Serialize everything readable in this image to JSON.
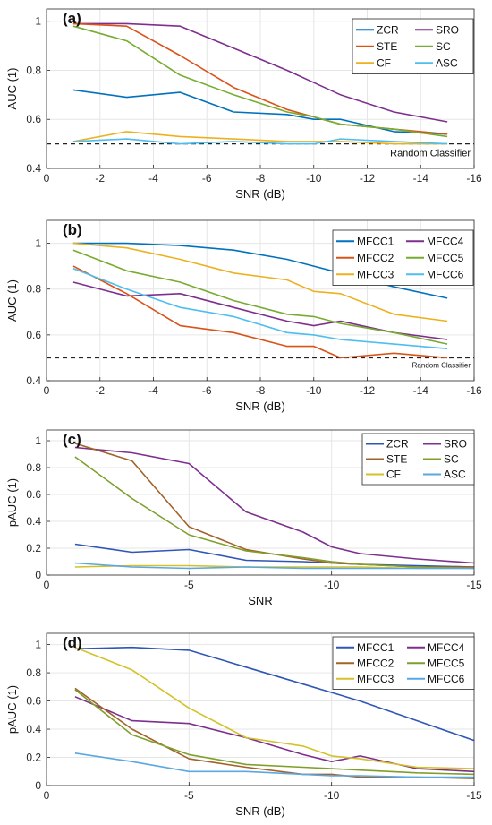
{
  "colors": {
    "blue": "#0072BD",
    "purple": "#7E2F8E",
    "red": "#D95319",
    "green": "#77AC30",
    "orange": "#EDB120",
    "cyan": "#4DBEEE",
    "brown": "#A2622A",
    "navy": "#2F56B5",
    "olive": "#7EA02A",
    "yellow": "#D4C22A",
    "lightblue": "#5AA8DF",
    "grid": "#e6e6e6",
    "axis": "#262626"
  },
  "chart_data": [
    {
      "type": "line",
      "panel_label": "(a)",
      "xlabel": "SNR (dB)",
      "ylabel": "AUC (1)",
      "xlim": [
        0,
        -16
      ],
      "ylim": [
        0.4,
        1.05
      ],
      "xticks": [
        0,
        -2,
        -4,
        -6,
        -8,
        -10,
        -12,
        -14,
        -16
      ],
      "xtick_labels": [
        "0",
        "-2",
        "-4",
        "-6",
        "-8",
        "-10",
        "-12",
        "-14",
        "-16"
      ],
      "yticks": [
        0.4,
        0.6,
        0.8,
        1.0
      ],
      "ytick_labels": [
        "0.4",
        "0.6",
        "0.8",
        "1"
      ],
      "grid": true,
      "legend_position": "top-right",
      "x": [
        -1,
        -3,
        -5,
        -7,
        -9,
        -10,
        -11,
        -13,
        -15
      ],
      "series": [
        {
          "name": "ZCR",
          "color": "#0072BD",
          "values": [
            0.72,
            0.69,
            0.71,
            0.63,
            0.62,
            0.6,
            0.6,
            0.55,
            0.54
          ]
        },
        {
          "name": "SRO",
          "color": "#7E2F8E",
          "values": [
            0.99,
            0.99,
            0.98,
            0.89,
            0.8,
            0.75,
            0.7,
            0.63,
            0.59
          ]
        },
        {
          "name": "STE",
          "color": "#D95319",
          "values": [
            0.99,
            0.98,
            0.86,
            0.73,
            0.64,
            0.61,
            0.58,
            0.56,
            0.54
          ]
        },
        {
          "name": "SC",
          "color": "#77AC30",
          "values": [
            0.98,
            0.92,
            0.78,
            0.7,
            0.63,
            0.61,
            0.58,
            0.56,
            0.53
          ]
        },
        {
          "name": "CF",
          "color": "#EDB120",
          "values": [
            0.51,
            0.55,
            0.53,
            0.52,
            0.51,
            0.51,
            0.51,
            0.5,
            0.5
          ]
        },
        {
          "name": "ASC",
          "color": "#4DBEEE",
          "values": [
            0.51,
            0.52,
            0.5,
            0.51,
            0.5,
            0.5,
            0.52,
            0.51,
            0.5
          ]
        }
      ],
      "reference_line": {
        "y": 0.5,
        "label": "Random Classifier"
      }
    },
    {
      "type": "line",
      "panel_label": "(b)",
      "xlabel": "SNR (dB)",
      "ylabel": "AUC (1)",
      "xlim": [
        0,
        -16
      ],
      "ylim": [
        0.4,
        1.1
      ],
      "xticks": [
        0,
        -2,
        -4,
        -6,
        -8,
        -10,
        -12,
        -14,
        -16
      ],
      "xtick_labels": [
        "0",
        "-2",
        "-4",
        "-6",
        "-8",
        "-10",
        "-12",
        "-14",
        "-16"
      ],
      "yticks": [
        0.4,
        0.6,
        0.8,
        1.0
      ],
      "ytick_labels": [
        "0.4",
        "0.6",
        "0.8",
        "1"
      ],
      "grid": true,
      "legend_position": "top-right",
      "x": [
        -1,
        -3,
        -5,
        -7,
        -9,
        -10,
        -11,
        -13,
        -15
      ],
      "series": [
        {
          "name": "MFCC1",
          "color": "#0072BD",
          "values": [
            1.0,
            1.0,
            0.99,
            0.97,
            0.93,
            0.9,
            0.87,
            0.81,
            0.76
          ]
        },
        {
          "name": "MFCC4",
          "color": "#7E2F8E",
          "values": [
            0.83,
            0.77,
            0.78,
            0.72,
            0.66,
            0.64,
            0.66,
            0.61,
            0.58
          ]
        },
        {
          "name": "MFCC2",
          "color": "#D95319",
          "values": [
            0.9,
            0.78,
            0.64,
            0.61,
            0.55,
            0.55,
            0.5,
            0.52,
            0.5
          ]
        },
        {
          "name": "MFCC5",
          "color": "#77AC30",
          "values": [
            0.97,
            0.88,
            0.83,
            0.75,
            0.69,
            0.68,
            0.65,
            0.61,
            0.56
          ]
        },
        {
          "name": "MFCC3",
          "color": "#EDB120",
          "values": [
            1.0,
            0.98,
            0.93,
            0.87,
            0.84,
            0.79,
            0.78,
            0.69,
            0.66
          ]
        },
        {
          "name": "MFCC6",
          "color": "#4DBEEE",
          "values": [
            0.89,
            0.8,
            0.72,
            0.68,
            0.61,
            0.6,
            0.58,
            0.56,
            0.54
          ]
        }
      ],
      "reference_line": {
        "y": 0.5,
        "label": "Random Classifier"
      }
    },
    {
      "type": "line",
      "panel_label": "(c)",
      "xlabel": "SNR",
      "ylabel": "pAUC (1)",
      "xlim": [
        0,
        -15
      ],
      "ylim": [
        0,
        1.08
      ],
      "xticks": [
        0,
        -5,
        -10,
        -15
      ],
      "xtick_labels": [
        "0",
        "-5",
        "-10",
        "-15"
      ],
      "yticks": [
        0,
        0.2,
        0.4,
        0.6,
        0.8,
        1.0
      ],
      "ytick_labels": [
        "0",
        "0.2",
        "0.4",
        "0.6",
        "0.8",
        "1"
      ],
      "grid": true,
      "legend_position": "top-right",
      "x": [
        -1,
        -3,
        -5,
        -7,
        -9,
        -10,
        -11,
        -13,
        -15
      ],
      "series": [
        {
          "name": "ZCR",
          "color": "#2F56B5",
          "values": [
            0.23,
            0.17,
            0.19,
            0.11,
            0.1,
            0.09,
            0.08,
            0.07,
            0.06
          ]
        },
        {
          "name": "SRO",
          "color": "#7E2F8E",
          "values": [
            0.95,
            0.91,
            0.83,
            0.47,
            0.32,
            0.21,
            0.16,
            0.12,
            0.09
          ]
        },
        {
          "name": "STE",
          "color": "#A2622A",
          "values": [
            0.98,
            0.85,
            0.36,
            0.19,
            0.12,
            0.09,
            0.08,
            0.06,
            0.06
          ]
        },
        {
          "name": "SC",
          "color": "#7EA02A",
          "values": [
            0.88,
            0.57,
            0.3,
            0.18,
            0.13,
            0.1,
            0.08,
            0.06,
            0.05
          ]
        },
        {
          "name": "CF",
          "color": "#D4C22A",
          "values": [
            0.06,
            0.07,
            0.07,
            0.06,
            0.06,
            0.06,
            0.06,
            0.05,
            0.05
          ]
        },
        {
          "name": "ASC",
          "color": "#5AA8DF",
          "values": [
            0.09,
            0.06,
            0.05,
            0.06,
            0.05,
            0.05,
            0.05,
            0.05,
            0.05
          ]
        }
      ]
    },
    {
      "type": "line",
      "panel_label": "(d)",
      "xlabel": "SNR (dB)",
      "ylabel": "pAUC (1)",
      "xlim": [
        0,
        -15
      ],
      "ylim": [
        0,
        1.08
      ],
      "xticks": [
        0,
        -5,
        -10,
        -15
      ],
      "xtick_labels": [
        "0",
        "-5",
        "-10",
        "-15"
      ],
      "yticks": [
        0,
        0.2,
        0.4,
        0.6,
        0.8,
        1.0
      ],
      "ytick_labels": [
        "0",
        "0.2",
        "0.4",
        "0.6",
        "0.8",
        "1"
      ],
      "grid": true,
      "legend_position": "top-right",
      "x": [
        -1,
        -3,
        -5,
        -7,
        -9,
        -10,
        -11,
        -13,
        -15
      ],
      "series": [
        {
          "name": "MFCC1",
          "color": "#2F56B5",
          "values": [
            0.97,
            0.98,
            0.96,
            0.84,
            0.72,
            0.66,
            0.6,
            0.46,
            0.32
          ]
        },
        {
          "name": "MFCC4",
          "color": "#7E2F8E",
          "values": [
            0.63,
            0.46,
            0.44,
            0.34,
            0.22,
            0.17,
            0.21,
            0.12,
            0.1
          ]
        },
        {
          "name": "MFCC2",
          "color": "#A2622A",
          "values": [
            0.69,
            0.4,
            0.19,
            0.13,
            0.08,
            0.08,
            0.06,
            0.06,
            0.05
          ]
        },
        {
          "name": "MFCC5",
          "color": "#7EA02A",
          "values": [
            0.68,
            0.36,
            0.22,
            0.15,
            0.13,
            0.12,
            0.11,
            0.09,
            0.08
          ]
        },
        {
          "name": "MFCC3",
          "color": "#D4C22A",
          "values": [
            0.98,
            0.82,
            0.55,
            0.34,
            0.28,
            0.21,
            0.19,
            0.13,
            0.12
          ]
        },
        {
          "name": "MFCC6",
          "color": "#5AA8DF",
          "values": [
            0.23,
            0.17,
            0.1,
            0.1,
            0.08,
            0.07,
            0.07,
            0.06,
            0.06
          ]
        }
      ]
    }
  ]
}
